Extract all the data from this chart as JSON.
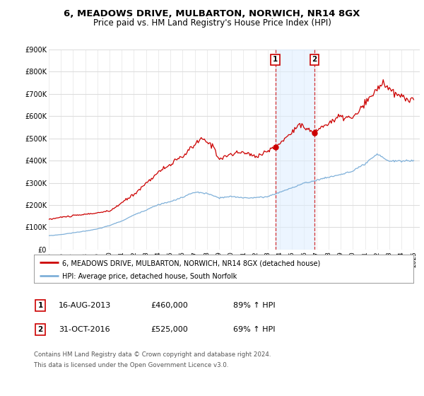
{
  "title": "6, MEADOWS DRIVE, MULBARTON, NORWICH, NR14 8GX",
  "subtitle": "Price paid vs. HM Land Registry's House Price Index (HPI)",
  "ylim": [
    0,
    900000
  ],
  "xlim_start": 1995.0,
  "xlim_end": 2025.5,
  "yticks": [
    0,
    100000,
    200000,
    300000,
    400000,
    500000,
    600000,
    700000,
    800000,
    900000
  ],
  "ytick_labels": [
    "£0",
    "£100K",
    "£200K",
    "£300K",
    "£400K",
    "£500K",
    "£600K",
    "£700K",
    "£800K",
    "£900K"
  ],
  "xticks": [
    1995,
    1996,
    1997,
    1998,
    1999,
    2000,
    2001,
    2002,
    2003,
    2004,
    2005,
    2006,
    2007,
    2008,
    2009,
    2010,
    2011,
    2012,
    2013,
    2014,
    2015,
    2016,
    2017,
    2018,
    2019,
    2020,
    2021,
    2022,
    2023,
    2024,
    2025
  ],
  "house_color": "#cc0000",
  "hpi_color": "#7fb0d9",
  "sale1_x": 2013.622,
  "sale1_y": 460000,
  "sale2_x": 2016.836,
  "sale2_y": 525000,
  "sale1_date": "16-AUG-2013",
  "sale1_price": "£460,000",
  "sale1_hpi": "89% ↑ HPI",
  "sale2_date": "31-OCT-2016",
  "sale2_price": "£525,000",
  "sale2_hpi": "69% ↑ HPI",
  "legend1_label": "6, MEADOWS DRIVE, MULBARTON, NORWICH, NR14 8GX (detached house)",
  "legend2_label": "HPI: Average price, detached house, South Norfolk",
  "footer1": "Contains HM Land Registry data © Crown copyright and database right 2024.",
  "footer2": "This data is licensed under the Open Government Licence v3.0.",
  "house_waypoints": [
    [
      1995.0,
      135000
    ],
    [
      1996,
      145000
    ],
    [
      1998,
      158000
    ],
    [
      2000,
      172000
    ],
    [
      2002,
      248000
    ],
    [
      2004,
      348000
    ],
    [
      2006,
      418000
    ],
    [
      2007.5,
      498000
    ],
    [
      2008.5,
      468000
    ],
    [
      2009,
      408000
    ],
    [
      2010,
      428000
    ],
    [
      2011,
      438000
    ],
    [
      2012,
      418000
    ],
    [
      2013.622,
      460000
    ],
    [
      2014,
      478000
    ],
    [
      2015,
      528000
    ],
    [
      2015.5,
      568000
    ],
    [
      2016.0,
      548000
    ],
    [
      2016.836,
      525000
    ],
    [
      2017,
      538000
    ],
    [
      2018,
      568000
    ],
    [
      2019,
      598000
    ],
    [
      2020,
      590000
    ],
    [
      2021,
      655000
    ],
    [
      2022.5,
      755000
    ],
    [
      2023,
      718000
    ],
    [
      2023.5,
      698000
    ],
    [
      2024.5,
      678000
    ],
    [
      2025.0,
      670000
    ]
  ],
  "hpi_waypoints": [
    [
      1995.0,
      62000
    ],
    [
      1996,
      67000
    ],
    [
      1997,
      75000
    ],
    [
      1998,
      83000
    ],
    [
      1999,
      92000
    ],
    [
      2000,
      108000
    ],
    [
      2001,
      128000
    ],
    [
      2002,
      155000
    ],
    [
      2003,
      178000
    ],
    [
      2004,
      202000
    ],
    [
      2005,
      215000
    ],
    [
      2006,
      235000
    ],
    [
      2007,
      258000
    ],
    [
      2008,
      252000
    ],
    [
      2009,
      232000
    ],
    [
      2010,
      238000
    ],
    [
      2011,
      233000
    ],
    [
      2012,
      233000
    ],
    [
      2013,
      238000
    ],
    [
      2014,
      258000
    ],
    [
      2015,
      278000
    ],
    [
      2016,
      298000
    ],
    [
      2017,
      312000
    ],
    [
      2018,
      325000
    ],
    [
      2019,
      338000
    ],
    [
      2020,
      352000
    ],
    [
      2021,
      385000
    ],
    [
      2022,
      428000
    ],
    [
      2023,
      398000
    ],
    [
      2024,
      398000
    ],
    [
      2025,
      400000
    ]
  ]
}
